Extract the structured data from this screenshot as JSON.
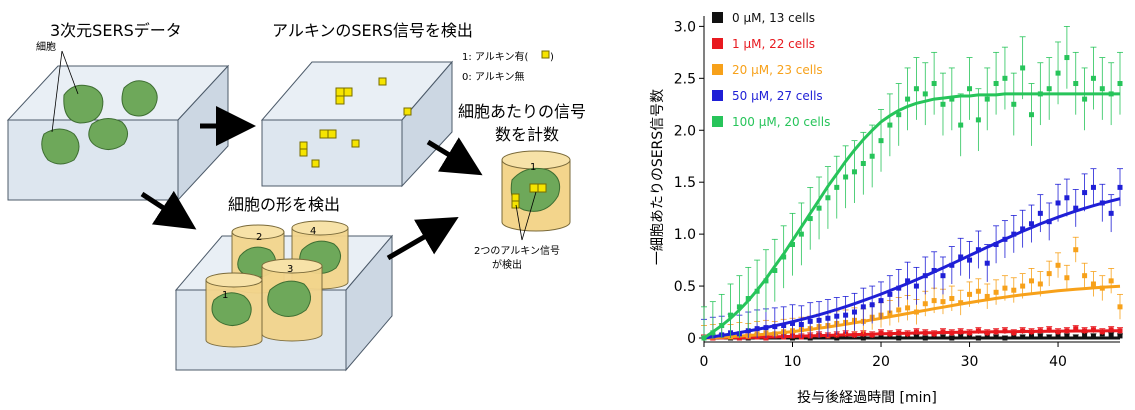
{
  "diagram": {
    "title_data": "3次元SERSデータ",
    "label_cell": "細胞",
    "title_detect": "アルキンのSERS信号を検出",
    "legend_present": "1: アルキン有(",
    "legend_present_close": ")",
    "legend_absent": "0: アルキン無",
    "title_count_line1": "細胞あたりの信号",
    "title_count_line2": "数を計数",
    "title_shape": "細胞の形を検出",
    "caption_line1": "2つのアルキン信号",
    "caption_line2": "が検出",
    "cyl_labels": [
      "1",
      "2",
      "3",
      "4"
    ],
    "count_cyl_label": "1"
  },
  "colors": {
    "box_fill": "#dde6ef",
    "box_top": "#e9eff5",
    "box_side": "#ccd7e3",
    "cell_green": "#6ea85a",
    "cube_yellow": "#f6e400",
    "cylinder_fill": "#f3d58c",
    "series": [
      "#111111",
      "#e8191f",
      "#f7a11a",
      "#1f1fd6",
      "#27c45a"
    ]
  },
  "chart_data": {
    "type": "scatter",
    "xlabel": "投与後経過時間 [min]",
    "ylabel": "一細胞あたりのSERS信号数",
    "xlim": [
      0,
      47
    ],
    "ylim": [
      0,
      3.1
    ],
    "xticks": [
      0,
      10,
      20,
      30,
      40
    ],
    "yticks": [
      0,
      0.5,
      1.0,
      1.5,
      2.0,
      2.5,
      3.0
    ],
    "ytick_labels": [
      "0",
      "0.5",
      "1.0",
      "1.5",
      "2.0",
      "2.5",
      "3.0"
    ],
    "legend_position": "top-left",
    "x": [
      0,
      1,
      2,
      3,
      4,
      5,
      6,
      7,
      8,
      9,
      10,
      11,
      12,
      13,
      14,
      15,
      16,
      17,
      18,
      19,
      20,
      21,
      22,
      23,
      24,
      25,
      26,
      27,
      28,
      29,
      30,
      31,
      32,
      33,
      34,
      35,
      36,
      37,
      38,
      39,
      40,
      41,
      42,
      43,
      44,
      45,
      46,
      47
    ],
    "series": [
      {
        "name": "0 μM, 13 cells",
        "values": [
          0,
          0,
          0.01,
          0,
          0.01,
          0,
          0.02,
          0,
          0.01,
          0.02,
          0,
          0.01,
          0,
          0.02,
          0.01,
          0,
          0.02,
          0.01,
          0,
          0.01,
          0.02,
          0.01,
          0,
          0.02,
          0.01,
          0,
          0.02,
          0.01,
          0,
          0.02,
          0.01,
          0,
          0.02,
          0.01,
          0,
          0.02,
          0.01,
          0.03,
          0.02,
          0.01,
          0.03,
          0.02,
          0.01,
          0.03,
          0.02,
          0.04,
          0.03,
          0.02
        ],
        "error": 0.02,
        "fit": [
          0,
          0,
          0,
          0,
          0,
          0,
          0,
          0,
          0,
          0,
          0,
          0,
          0,
          0,
          0,
          0,
          0,
          0,
          0,
          0,
          0,
          0,
          0,
          0,
          0,
          0,
          0,
          0,
          0,
          0,
          0,
          0,
          0,
          0,
          0,
          0,
          0,
          0,
          0,
          0,
          0,
          0,
          0,
          0,
          0,
          0,
          0,
          0
        ]
      },
      {
        "name": "1 μM, 22 cells",
        "values": [
          0,
          0,
          0.01,
          0.01,
          0,
          0.01,
          0.01,
          0,
          0.02,
          0.01,
          0.02,
          0.01,
          0.02,
          0.03,
          0.02,
          0.03,
          0.04,
          0.03,
          0.04,
          0.03,
          0.05,
          0.04,
          0.05,
          0.04,
          0.06,
          0.05,
          0.04,
          0.06,
          0.05,
          0.06,
          0.05,
          0.07,
          0.05,
          0.06,
          0.07,
          0.05,
          0.07,
          0.06,
          0.07,
          0.08,
          0.06,
          0.07,
          0.09,
          0.07,
          0.08,
          0.06,
          0.08,
          0.07
        ],
        "error": 0.03,
        "fit": [
          0,
          0.001,
          0.002,
          0.003,
          0.004,
          0.005,
          0.007,
          0.009,
          0.011,
          0.013,
          0.015,
          0.018,
          0.02,
          0.023,
          0.025,
          0.028,
          0.03,
          0.033,
          0.035,
          0.037,
          0.04,
          0.042,
          0.044,
          0.046,
          0.048,
          0.05,
          0.051,
          0.053,
          0.054,
          0.056,
          0.057,
          0.058,
          0.059,
          0.06,
          0.061,
          0.062,
          0.063,
          0.064,
          0.064,
          0.065,
          0.066,
          0.066,
          0.067,
          0.067,
          0.068,
          0.068,
          0.069,
          0.069
        ]
      },
      {
        "name": "20 μM, 23 cells",
        "values": [
          0,
          0.01,
          0.02,
          0.01,
          0.03,
          0.02,
          0.04,
          0.05,
          0.04,
          0.06,
          0.07,
          0.08,
          0.09,
          0.11,
          0.12,
          0.14,
          0.15,
          0.17,
          0.16,
          0.2,
          0.22,
          0.24,
          0.27,
          0.29,
          0.25,
          0.33,
          0.36,
          0.35,
          0.38,
          0.34,
          0.42,
          0.45,
          0.4,
          0.44,
          0.48,
          0.46,
          0.5,
          0.55,
          0.52,
          0.62,
          0.7,
          0.58,
          0.85,
          0.6,
          0.52,
          0.48,
          0.55,
          0.3
        ],
        "error": 0.12,
        "fit": [
          0,
          0.004,
          0.008,
          0.013,
          0.018,
          0.024,
          0.03,
          0.037,
          0.045,
          0.053,
          0.062,
          0.072,
          0.083,
          0.094,
          0.106,
          0.119,
          0.132,
          0.146,
          0.16,
          0.175,
          0.19,
          0.205,
          0.22,
          0.236,
          0.251,
          0.267,
          0.282,
          0.297,
          0.312,
          0.327,
          0.341,
          0.355,
          0.368,
          0.381,
          0.393,
          0.405,
          0.416,
          0.426,
          0.436,
          0.445,
          0.454,
          0.462,
          0.469,
          0.476,
          0.482,
          0.488,
          0.493,
          0.498
        ]
      },
      {
        "name": "50 μM, 27 cells",
        "values": [
          0,
          0.02,
          0.03,
          0.05,
          0.04,
          0.07,
          0.09,
          0.1,
          0.11,
          0.12,
          0.14,
          0.13,
          0.16,
          0.17,
          0.19,
          0.21,
          0.22,
          0.25,
          0.3,
          0.32,
          0.36,
          0.42,
          0.48,
          0.55,
          0.5,
          0.6,
          0.65,
          0.6,
          0.7,
          0.78,
          0.75,
          0.85,
          0.72,
          0.9,
          0.95,
          1.0,
          1.05,
          1.1,
          1.2,
          1.12,
          1.3,
          1.35,
          1.25,
          1.4,
          1.45,
          1.3,
          1.2,
          1.45
        ],
        "error": 0.18,
        "fit": [
          0,
          0.012,
          0.025,
          0.038,
          0.052,
          0.067,
          0.083,
          0.1,
          0.118,
          0.137,
          0.157,
          0.178,
          0.2,
          0.223,
          0.248,
          0.274,
          0.301,
          0.33,
          0.36,
          0.391,
          0.423,
          0.456,
          0.49,
          0.525,
          0.561,
          0.598,
          0.636,
          0.675,
          0.714,
          0.754,
          0.794,
          0.834,
          0.874,
          0.913,
          0.952,
          0.99,
          1.027,
          1.063,
          1.098,
          1.131,
          1.163,
          1.193,
          1.222,
          1.249,
          1.274,
          1.298,
          1.32,
          1.341
        ]
      },
      {
        "name": "100 μM, 20 cells",
        "values": [
          0,
          0.05,
          0.12,
          0.22,
          0.3,
          0.38,
          0.45,
          0.55,
          0.65,
          0.78,
          0.9,
          1.0,
          1.15,
          1.25,
          1.35,
          1.45,
          1.55,
          1.6,
          1.68,
          1.75,
          1.9,
          2.05,
          2.15,
          2.3,
          2.4,
          2.35,
          2.45,
          2.25,
          2.3,
          2.05,
          2.4,
          2.1,
          2.3,
          2.45,
          2.5,
          2.25,
          2.6,
          2.15,
          2.35,
          2.4,
          2.55,
          2.7,
          2.45,
          2.3,
          2.5,
          2.4,
          2.35,
          2.45
        ],
        "error": 0.3,
        "fit": [
          0,
          0.06,
          0.12,
          0.19,
          0.27,
          0.36,
          0.46,
          0.57,
          0.69,
          0.81,
          0.94,
          1.07,
          1.2,
          1.33,
          1.46,
          1.58,
          1.7,
          1.81,
          1.91,
          2.0,
          2.08,
          2.14,
          2.19,
          2.23,
          2.26,
          2.28,
          2.3,
          2.31,
          2.32,
          2.33,
          2.33,
          2.34,
          2.34,
          2.34,
          2.35,
          2.35,
          2.35,
          2.35,
          2.35,
          2.35,
          2.35,
          2.35,
          2.35,
          2.35,
          2.35,
          2.35,
          2.35,
          2.35
        ]
      }
    ]
  }
}
